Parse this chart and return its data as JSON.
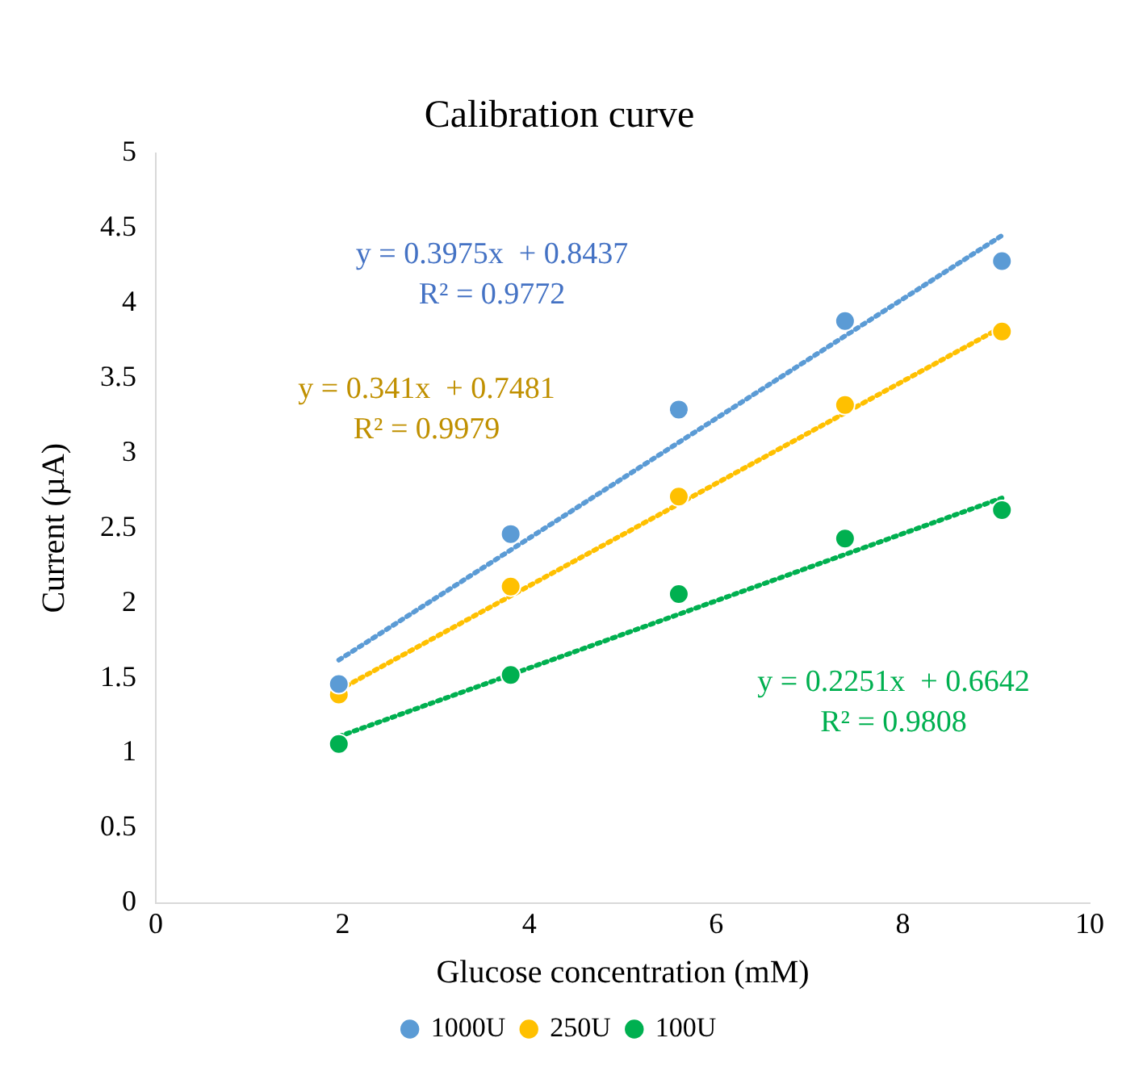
{
  "chart_data": {
    "type": "scatter",
    "title": "Calibration curve",
    "xlabel": "Glucose concentration (mM)",
    "ylabel": "Current (µA)",
    "xlim": [
      0,
      10
    ],
    "xticks": [
      0,
      2,
      4,
      6,
      8,
      10
    ],
    "ylim": [
      0,
      5
    ],
    "yticks": [
      0,
      0.5,
      1,
      1.5,
      2,
      2.5,
      3,
      3.5,
      4,
      4.5,
      5
    ],
    "grid": false,
    "legend": "bottom",
    "marker": "circle",
    "x": [
      1.96,
      3.8,
      5.6,
      7.38,
      9.06
    ],
    "series": [
      {
        "name": "1000U",
        "color": "#5b9bd5",
        "values": [
          1.46,
          2.46,
          3.29,
          3.88,
          4.28
        ]
      },
      {
        "name": "250U",
        "color": "#ffc000",
        "values": [
          1.39,
          2.11,
          2.71,
          3.32,
          3.81
        ]
      },
      {
        "name": "100U",
        "color": "#00b050",
        "values": [
          1.06,
          1.52,
          2.06,
          2.43,
          2.62
        ]
      },
      {
        "type": "line",
        "color": "#5b9bd5",
        "values": [
          1.62,
          null,
          null,
          null,
          4.45
        ],
        "line_style": "dotted",
        "marker": "none"
      },
      {
        "type": "line",
        "color": "#ffc000",
        "values": [
          1.42,
          null,
          null,
          null,
          3.84
        ],
        "line_style": "dotted",
        "marker": "none"
      },
      {
        "type": "line",
        "color": "#00b050",
        "values": [
          1.11,
          null,
          null,
          null,
          2.7
        ],
        "line_style": "dotted",
        "marker": "none"
      }
    ],
    "annotations": [
      "y = 0.3975x  + 0.8437",
      "R² = 0.9772",
      "y = 0.341x  + 0.7481",
      "R² = 0.9979",
      "y = 0.2251x  + 0.6642",
      "R² = 0.9808"
    ]
  }
}
